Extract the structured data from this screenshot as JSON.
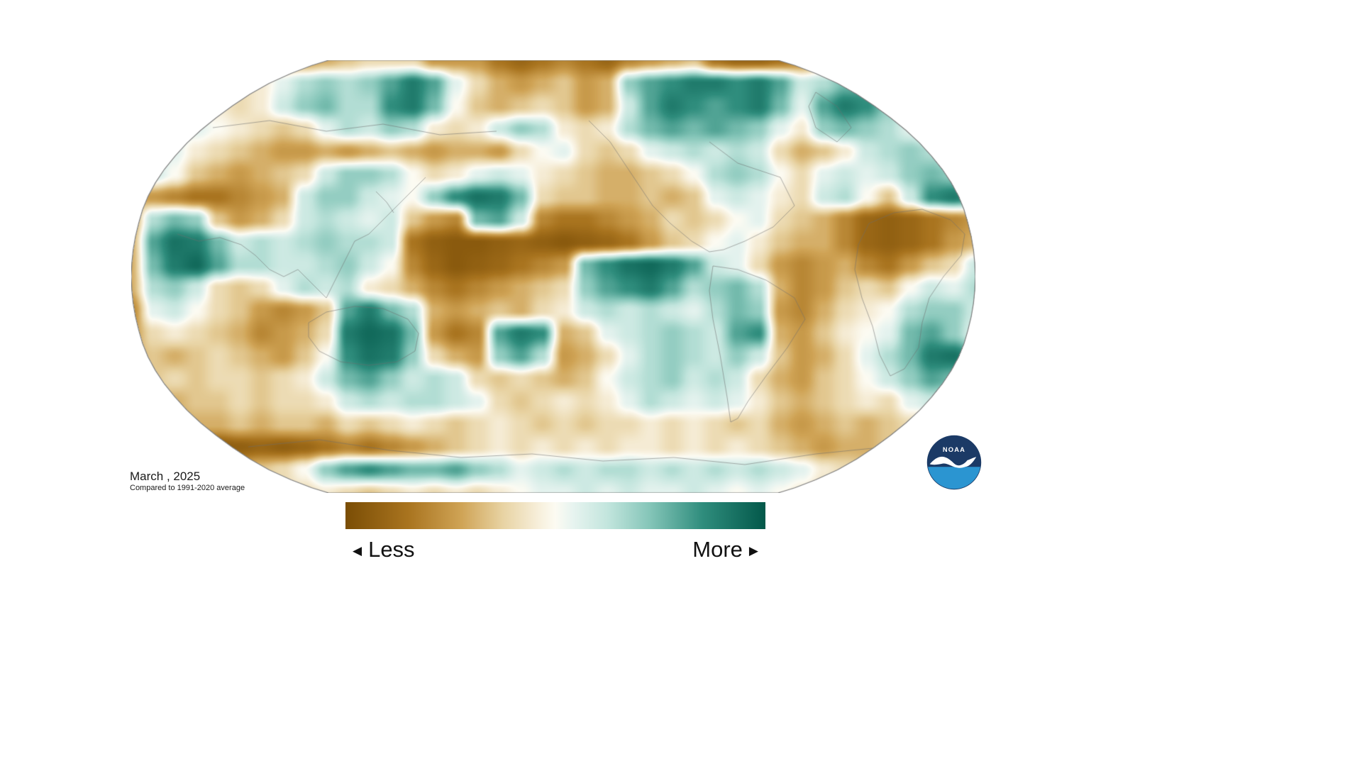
{
  "page": {
    "background": "#ffffff"
  },
  "annotations": {
    "date_label": "March , 2025",
    "baseline_label": "Compared to 1991-2020 average"
  },
  "legend": {
    "less_label": "Less",
    "more_label": "More",
    "left_arrow": "◀",
    "right_arrow": "▶"
  },
  "logo": {
    "text": "NOAA",
    "navy": "#1b3a66",
    "blue": "#2b95d1",
    "white": "#ffffff"
  },
  "chart_data": {
    "type": "heatmap",
    "projection": "robinson",
    "scale": {
      "min": -1,
      "max": 1,
      "min_label": "Less",
      "max_label": "More"
    },
    "colormap": [
      {
        "pos": -1,
        "color": "#7a4d05"
      },
      {
        "pos": -0.7,
        "color": "#a9741f"
      },
      {
        "pos": -0.45,
        "color": "#cfa355"
      },
      {
        "pos": -0.25,
        "color": "#e8d3a3"
      },
      {
        "pos": -0.08,
        "color": "#f7efdb"
      },
      {
        "pos": 0,
        "color": "#fcfbf2"
      },
      {
        "pos": 0.08,
        "color": "#e8f4f0"
      },
      {
        "pos": 0.25,
        "color": "#c2e5dd"
      },
      {
        "pos": 0.45,
        "color": "#84c5b8"
      },
      {
        "pos": 0.7,
        "color": "#2f8d7d"
      },
      {
        "pos": 1,
        "color": "#03584a"
      }
    ],
    "grid": {
      "cols": 40,
      "rows": 20,
      "values": [
        [
          -0.4,
          -0.3,
          -0.3,
          -0.4,
          -0.5,
          -0.4,
          -0.3,
          -0.4,
          -0.5,
          -0.4,
          -0.3,
          -0.2,
          -0.2,
          -0.2,
          -0.5,
          -0.5,
          -0.5,
          -0.7,
          -0.8,
          -0.7,
          -0.6,
          -0.7,
          -0.8,
          -0.6,
          -0.5,
          -0.4,
          -0.3,
          -0.7,
          -0.8,
          -0.8,
          -0.7,
          -0.6,
          -0.4,
          -0.1,
          0.1,
          -0.1,
          -0.3,
          -0.5,
          -0.5,
          -0.4
        ],
        [
          -0.2,
          -0.1,
          -0.2,
          -0.3,
          -0.3,
          -0.2,
          -0.1,
          0.1,
          0.3,
          0.4,
          0.3,
          0.4,
          0.6,
          0.8,
          0.6,
          0.1,
          -0.2,
          -0.4,
          -0.5,
          -0.4,
          -0.3,
          -0.5,
          -0.4,
          0.4,
          0.6,
          0.7,
          0.8,
          0.8,
          0.7,
          0.8,
          0.6,
          0.2,
          0.3,
          0.5,
          0.6,
          0.4,
          -0.2,
          -0.4,
          -0.5,
          -0.4
        ],
        [
          0.1,
          0.2,
          0.1,
          0,
          -0.1,
          -0.2,
          -0.1,
          0.2,
          0.4,
          0.5,
          0.3,
          0.3,
          0.7,
          0.8,
          0.5,
          0,
          -0.3,
          -0.4,
          -0.3,
          -0.2,
          -0.3,
          -0.5,
          -0.4,
          0.2,
          0.6,
          0.8,
          0.7,
          0.6,
          0.7,
          0.8,
          0.5,
          0.1,
          0.6,
          0.8,
          0.7,
          0.4,
          0,
          -0.3,
          -0.4,
          -0.3
        ],
        [
          0.2,
          0.3,
          0.2,
          0.1,
          0,
          -0.1,
          -0.2,
          -0.3,
          -0.2,
          0.1,
          0.3,
          0.2,
          0.4,
          0.3,
          -0.1,
          -0.2,
          -0.1,
          0.2,
          0.4,
          0.3,
          -0.1,
          -0.2,
          -0.1,
          0.3,
          0.5,
          0.6,
          0.5,
          0.6,
          0.5,
          0.4,
          0.1,
          -0.1,
          0.4,
          0.5,
          0.4,
          0.3,
          0.1,
          -0.1,
          -0.2,
          -0.2
        ],
        [
          0.2,
          0.3,
          0.1,
          -0.1,
          -0.2,
          -0.3,
          -0.4,
          -0.5,
          -0.5,
          -0.4,
          -0.5,
          -0.4,
          -0.3,
          -0.4,
          -0.5,
          -0.4,
          -0.4,
          -0.5,
          -0.2,
          0,
          0.1,
          -0.2,
          -0.3,
          -0.2,
          0.1,
          0.2,
          0.3,
          0.2,
          0.3,
          0.2,
          -0.2,
          -0.4,
          -0.3,
          -0.1,
          0.2,
          0.3,
          0.4,
          0.3,
          0.1,
          -0.1
        ],
        [
          0.1,
          0.2,
          0,
          -0.3,
          -0.4,
          -0.5,
          -0.4,
          -0.3,
          -0.2,
          0.2,
          0.4,
          0.4,
          0.3,
          0,
          -0.2,
          -0.1,
          0.1,
          0.2,
          0.1,
          -0.1,
          -0.2,
          -0.3,
          -0.4,
          -0.4,
          -0.3,
          -0.2,
          0,
          0.3,
          0.4,
          0.3,
          0,
          -0.2,
          0.1,
          0.2,
          0.1,
          0.2,
          0.4,
          0.5,
          0.4,
          0.1
        ],
        [
          -0.4,
          -0.5,
          -0.6,
          -0.7,
          -0.7,
          -0.6,
          -0.5,
          -0.4,
          0.2,
          0.4,
          0.4,
          0.2,
          0.1,
          0,
          0.4,
          0.7,
          0.85,
          0.8,
          0.5,
          -0.2,
          -0.3,
          -0.3,
          -0.4,
          -0.4,
          -0.3,
          -0.4,
          -0.3,
          0.1,
          0.2,
          0.1,
          -0.1,
          -0.2,
          0.2,
          0.3,
          0,
          -0.3,
          0.2,
          0.7,
          0.8,
          0.6
        ],
        [
          -0.5,
          0.3,
          0.5,
          0.4,
          -0.3,
          -0.5,
          -0.4,
          -0.2,
          0.2,
          0.3,
          0.2,
          0.1,
          0.2,
          -0.3,
          -0.5,
          -0.6,
          0.5,
          0.6,
          0.2,
          -0.6,
          -0.7,
          -0.7,
          -0.6,
          -0.5,
          -0.4,
          -0.2,
          -0.3,
          -0.2,
          0,
          0.1,
          -0.2,
          -0.3,
          -0.4,
          -0.6,
          -0.8,
          -0.85,
          -0.8,
          -0.7,
          -0.6,
          -0.5
        ],
        [
          -0.4,
          0.6,
          0.85,
          0.8,
          0.5,
          0.2,
          0.3,
          0.2,
          0.3,
          0.4,
          0.3,
          0.3,
          0.2,
          -0.7,
          -0.85,
          -0.9,
          -0.9,
          -0.85,
          -0.8,
          -0.85,
          -0.9,
          -0.85,
          -0.8,
          -0.7,
          -0.5,
          -0.3,
          -0.2,
          0,
          0.1,
          -0.1,
          -0.3,
          -0.4,
          -0.4,
          -0.6,
          -0.8,
          -0.85,
          -0.8,
          -0.7,
          -0.5,
          -0.4
        ],
        [
          -0.4,
          0.5,
          0.8,
          0.9,
          0.6,
          0.3,
          0.3,
          0.2,
          0.2,
          0.3,
          0.4,
          0.2,
          0,
          -0.6,
          -0.8,
          -0.9,
          -0.85,
          -0.8,
          -0.7,
          -0.6,
          -0.5,
          0.5,
          0.7,
          0.85,
          0.9,
          0.8,
          0.6,
          0.2,
          0.1,
          -0.2,
          -0.5,
          -0.6,
          -0.5,
          -0.4,
          -0.6,
          -0.7,
          -0.5,
          -0.3,
          -0.2,
          0.2
        ],
        [
          -0.4,
          0.3,
          0.4,
          0.2,
          -0.2,
          -0.3,
          -0.2,
          0.1,
          0.3,
          0.2,
          0.3,
          -0.1,
          -0.2,
          -0.4,
          -0.6,
          -0.7,
          -0.6,
          -0.5,
          -0.4,
          -0.3,
          -0.2,
          0.4,
          0.6,
          0.7,
          0.8,
          0.6,
          0.3,
          0.4,
          0.5,
          0.3,
          -0.4,
          -0.6,
          -0.5,
          -0.3,
          -0.2,
          -0.3,
          0,
          0.2,
          0.1,
          0.3
        ],
        [
          -0.6,
          0.1,
          0.2,
          0,
          -0.2,
          -0.3,
          -0.5,
          -0.6,
          -0.5,
          -0.3,
          0.6,
          0.8,
          0.5,
          0.3,
          -0.4,
          -0.5,
          -0.4,
          -0.3,
          -0.4,
          -0.2,
          -0.1,
          0.2,
          0.3,
          0.2,
          0.3,
          0.2,
          0.1,
          0.3,
          0.5,
          0.4,
          -0.5,
          -0.6,
          -0.4,
          -0.2,
          -0.1,
          0,
          0.3,
          0.4,
          0.4,
          0.2
        ],
        [
          -0.5,
          -0.2,
          -0.1,
          -0.2,
          -0.3,
          -0.4,
          -0.6,
          -0.5,
          -0.4,
          -0.2,
          0.8,
          0.9,
          0.85,
          0.5,
          -0.5,
          -0.7,
          -0.6,
          0.6,
          0.8,
          0.7,
          -0.4,
          -0.3,
          0.1,
          0.2,
          0.3,
          0.4,
          0.3,
          0.2,
          0.6,
          0.7,
          -0.4,
          -0.5,
          -0.3,
          -0.1,
          0,
          0.1,
          0.5,
          0.6,
          0.4,
          0.1
        ],
        [
          -0.4,
          -0.3,
          -0.4,
          -0.3,
          -0.2,
          -0.3,
          -0.4,
          -0.5,
          -0.3,
          0,
          0.7,
          0.85,
          0.8,
          0.4,
          -0.2,
          -0.4,
          -0.5,
          0.4,
          0.6,
          0.3,
          -0.5,
          -0.4,
          -0.2,
          0.1,
          0.3,
          0.4,
          0.3,
          0.2,
          0.4,
          0.2,
          -0.3,
          -0.5,
          -0.4,
          -0.2,
          0.1,
          0.3,
          0.5,
          0.8,
          0.85,
          0.6
        ],
        [
          -0.5,
          -0.3,
          -0.2,
          -0.3,
          -0.2,
          -0.2,
          -0.3,
          -0.2,
          -0.1,
          0.2,
          0.5,
          0.6,
          0.4,
          0.2,
          0.3,
          0.2,
          -0.2,
          -0.3,
          -0.2,
          -0.3,
          -0.4,
          -0.3,
          0,
          0.2,
          0.3,
          0.4,
          0.2,
          0.3,
          0.2,
          -0.2,
          -0.4,
          -0.5,
          -0.3,
          -0.2,
          0,
          0.2,
          0.4,
          0.6,
          0.5,
          0.3
        ],
        [
          -0.4,
          -0.3,
          -0.4,
          -0.3,
          -0.3,
          -0.2,
          -0.3,
          -0.2,
          -0.2,
          -0.1,
          0.2,
          0.3,
          0.2,
          0.3,
          0.3,
          0.2,
          0.1,
          -0.2,
          -0.3,
          -0.2,
          -0.1,
          -0.2,
          -0.1,
          0.1,
          0.3,
          0.2,
          0.1,
          0.2,
          0.1,
          -0.1,
          -0.3,
          -0.4,
          -0.3,
          -0.2,
          -0.1,
          -0.2,
          0.1,
          0.2,
          0.1,
          -0.1
        ],
        [
          -0.3,
          -0.4,
          -0.5,
          -0.4,
          -0.4,
          -0.3,
          -0.4,
          -0.3,
          -0.3,
          -0.4,
          -0.2,
          -0.3,
          -0.2,
          -0.1,
          -0.2,
          -0.3,
          -0.2,
          -0.1,
          -0.2,
          -0.3,
          -0.2,
          -0.3,
          -0.2,
          -0.2,
          -0.1,
          -0.2,
          -0.1,
          -0.2,
          -0.3,
          -0.2,
          -0.4,
          -0.5,
          -0.4,
          -0.3,
          -0.4,
          -0.3,
          -0.2,
          -0.3,
          -0.2,
          -0.2
        ],
        [
          -0.4,
          -0.6,
          -0.8,
          -0.85,
          -0.9,
          -0.85,
          -0.8,
          -0.85,
          -0.8,
          -0.7,
          -0.6,
          -0.7,
          -0.6,
          -0.5,
          -0.4,
          -0.3,
          -0.2,
          -0.1,
          -0.2,
          -0.1,
          -0.2,
          -0.1,
          -0.2,
          -0.1,
          -0.1,
          -0.2,
          -0.1,
          -0.2,
          -0.1,
          -0.2,
          -0.3,
          -0.4,
          -0.5,
          -0.4,
          -0.4,
          -0.3,
          -0.4,
          -0.3,
          -0.2,
          -0.3
        ],
        [
          -0.2,
          -0.4,
          -0.5,
          -0.6,
          -0.5,
          -0.4,
          -0.3,
          -0.2,
          0,
          0.4,
          0.6,
          0.7,
          0.6,
          0.5,
          0.5,
          0.6,
          0.4,
          0.3,
          0.1,
          0.2,
          0.3,
          0.2,
          0.3,
          0.3,
          0.2,
          0.3,
          0.2,
          0.3,
          0.2,
          0.3,
          0.2,
          0.1,
          -0.1,
          -0.2,
          -0.3,
          -0.2,
          -0.1,
          -0.2,
          -0.1,
          -0.1
        ],
        [
          -0.2,
          -0.3,
          -0.3,
          -0.2,
          -0.3,
          -0.2,
          -0.3,
          -0.2,
          -0.2,
          -0.1,
          -0.2,
          -0.3,
          -0.2,
          -0.1,
          -0.2,
          -0.1,
          -0.2,
          -0.1,
          0,
          0.1,
          0.1,
          0.2,
          0.1,
          0.2,
          0.1,
          0.1,
          0.2,
          0.1,
          0,
          0.1,
          0,
          -0.1,
          -0.2,
          -0.1,
          -0.2,
          -0.2,
          -0.1,
          -0.2,
          -0.1,
          -0.2
        ]
      ]
    }
  }
}
